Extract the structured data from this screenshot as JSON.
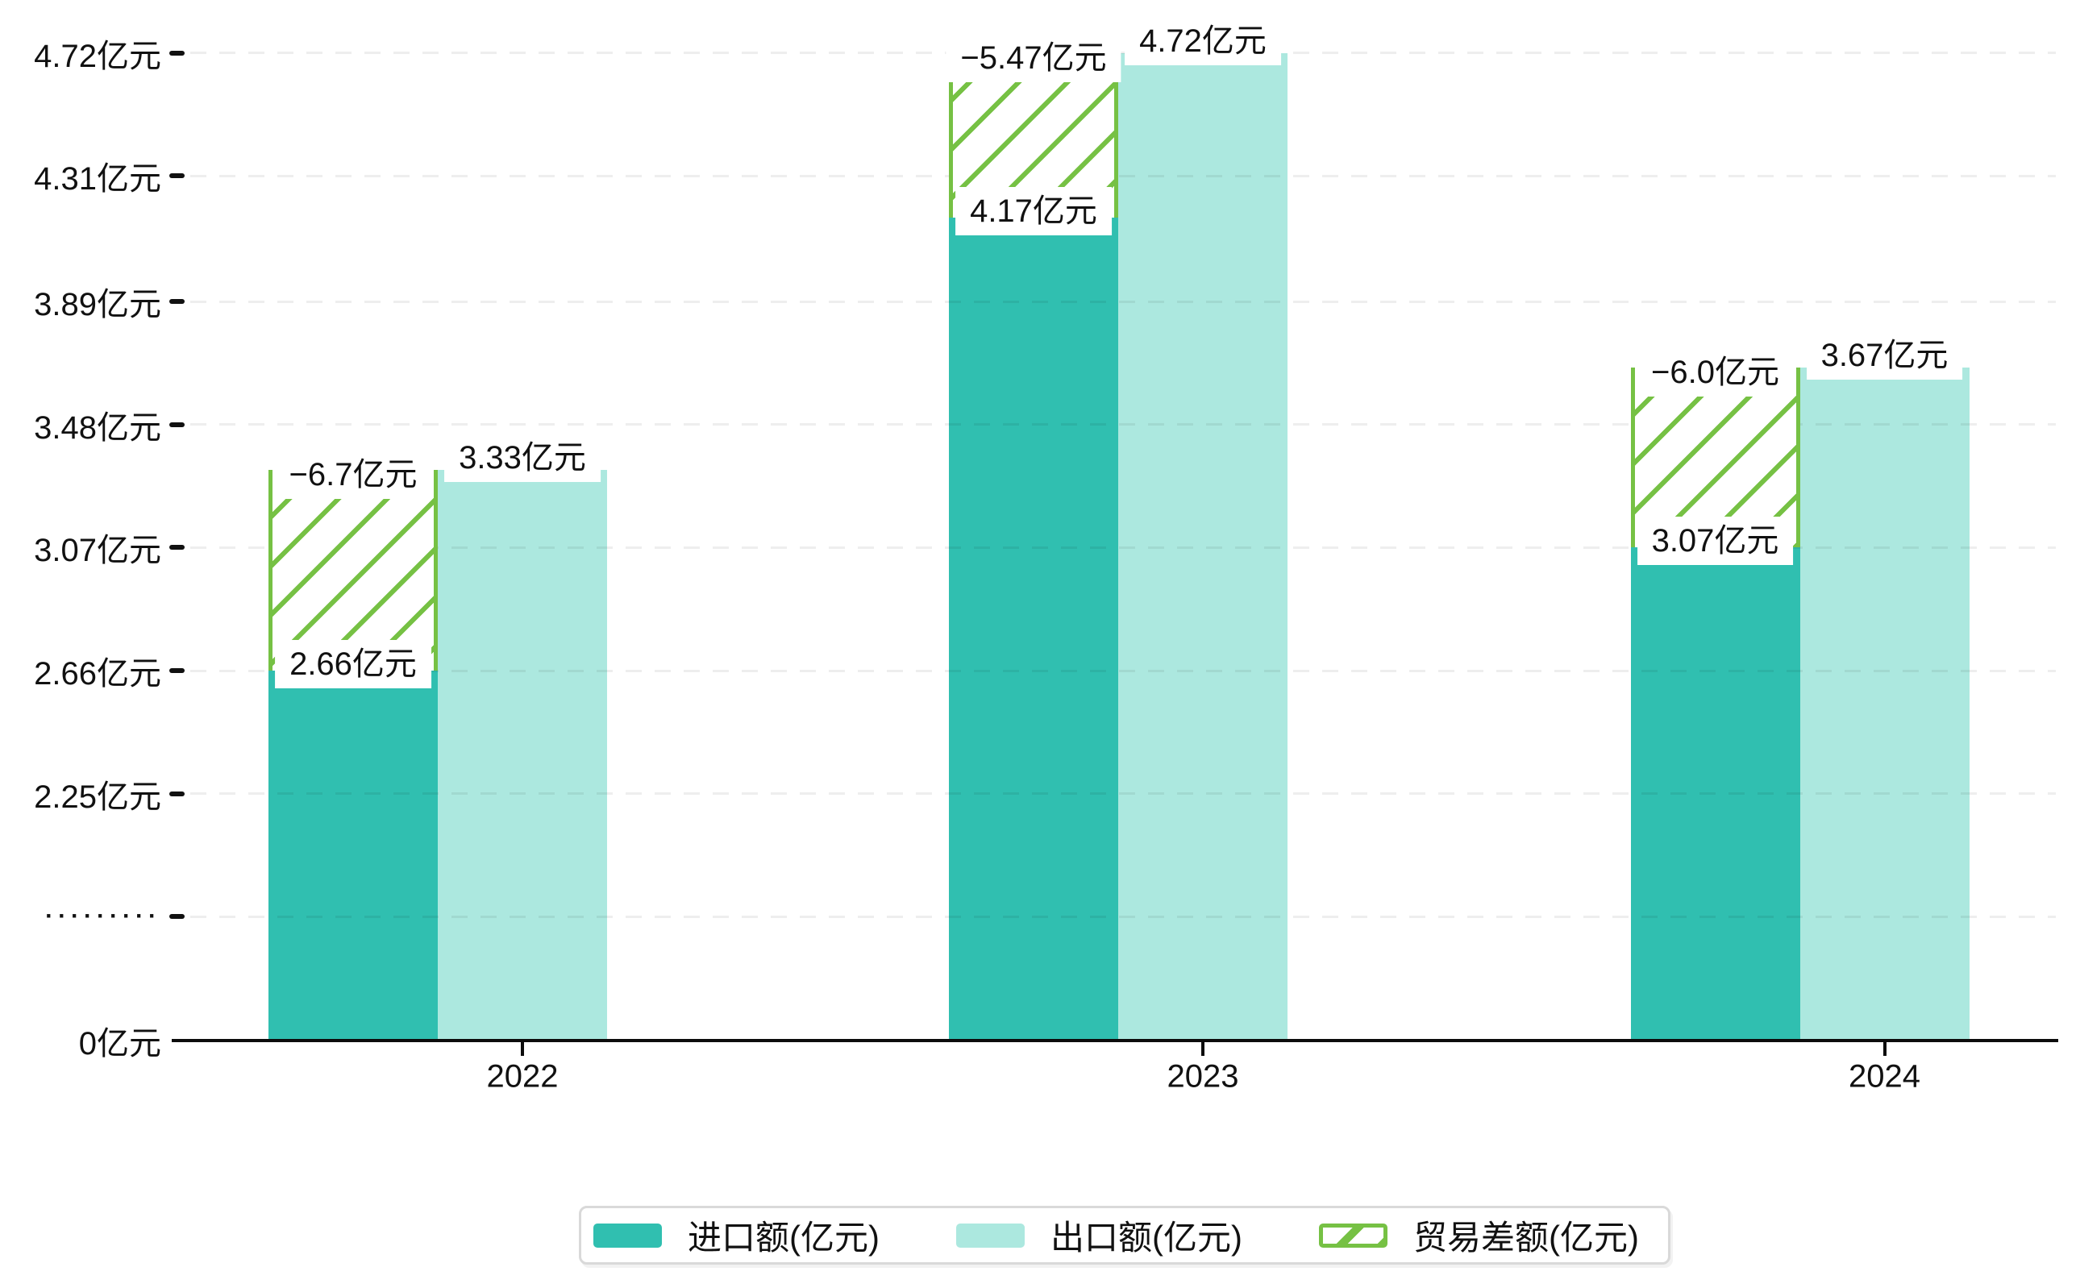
{
  "chart_data": {
    "type": "bar",
    "title": "",
    "categories": [
      "2022",
      "2023",
      "2024"
    ],
    "series": [
      {
        "name": "进口额(亿元)",
        "values": [
          2.66,
          4.17,
          3.07
        ]
      },
      {
        "name": "出口额(亿元)",
        "values": [
          3.33,
          4.72,
          3.67
        ]
      },
      {
        "name": "贸易差额(亿元)",
        "values": [
          -6.7,
          -5.47,
          -6.0
        ],
        "style": "hatched-overlay"
      }
    ],
    "y_tick_labels": [
      "4.72亿元",
      "4.31亿元",
      "3.89亿元",
      "3.48亿元",
      "3.07亿元",
      "2.66亿元",
      "2.25亿元",
      "·········",
      "0亿元"
    ],
    "y_axis_break": true,
    "grid": "horizontal-dashed",
    "legend_position": "bottom"
  },
  "bar_value_labels": {
    "import": [
      "2.66亿元",
      "4.17亿元",
      "3.07亿元"
    ],
    "export": [
      "3.33亿元",
      "4.72亿元",
      "3.67亿元"
    ],
    "diff": [
      "−6.7亿元",
      "−5.47亿元",
      "−6.0亿元"
    ]
  },
  "legend": {
    "items": [
      {
        "label": "进口额(亿元)",
        "swatch": "import-swatch"
      },
      {
        "label": "出口额(亿元)",
        "swatch": "export-swatch"
      },
      {
        "label": "贸易差额(亿元)",
        "swatch": "diff-hatch-swatch"
      }
    ]
  },
  "colors": {
    "import_bar": "#30bfb0",
    "export_bar": "#ace8df",
    "hatch_green": "#76c144",
    "axis": "#0c0c0c",
    "grid": "rgba(0,0,0,0.065)",
    "legend_border": "#d9d9d9",
    "text": "#111111",
    "label_background": "#ffffff"
  }
}
